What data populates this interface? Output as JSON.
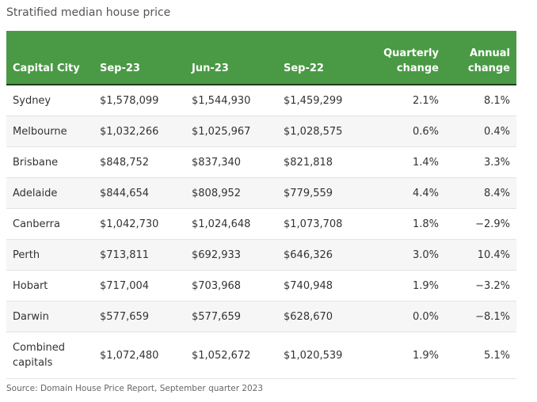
{
  "title": "Stratified median house price",
  "table": {
    "headers": {
      "city": "Capital City",
      "sep23": "Sep-23",
      "jun23": "Jun-23",
      "sep22": "Sep-22",
      "quarterly_line1": "Quarterly",
      "quarterly_line2": "change",
      "annual_line1": "Annual",
      "annual_line2": "change"
    },
    "rows": [
      {
        "city": "Sydney",
        "sep23": "$1,578,099",
        "jun23": "$1,544,930",
        "sep22": "$1,459,299",
        "quarterly": "2.1%",
        "annual": "8.1%"
      },
      {
        "city": "Melbourne",
        "sep23": "$1,032,266",
        "jun23": "$1,025,967",
        "sep22": "$1,028,575",
        "quarterly": "0.6%",
        "annual": "0.4%"
      },
      {
        "city": "Brisbane",
        "sep23": "$848,752",
        "jun23": "$837,340",
        "sep22": "$821,818",
        "quarterly": "1.4%",
        "annual": "3.3%"
      },
      {
        "city": "Adelaide",
        "sep23": "$844,654",
        "jun23": "$808,952",
        "sep22": "$779,559",
        "quarterly": "4.4%",
        "annual": "8.4%"
      },
      {
        "city": "Canberra",
        "sep23": "$1,042,730",
        "jun23": "$1,024,648",
        "sep22": "$1,073,708",
        "quarterly": "1.8%",
        "annual": "−2.9%"
      },
      {
        "city": "Perth",
        "sep23": "$713,811",
        "jun23": "$692,933",
        "sep22": "$646,326",
        "quarterly": "3.0%",
        "annual": "10.4%"
      },
      {
        "city": "Hobart",
        "sep23": "$717,004",
        "jun23": "$703,968",
        "sep22": "$740,948",
        "quarterly": "1.9%",
        "annual": "−3.2%"
      },
      {
        "city": "Darwin",
        "sep23": "$577,659",
        "jun23": "$577,659",
        "sep22": "$628,670",
        "quarterly": "0.0%",
        "annual": "−8.1%"
      },
      {
        "city": "Combined capitals",
        "sep23": "$1,072,480",
        "jun23": "$1,052,672",
        "sep22": "$1,020,539",
        "quarterly": "1.9%",
        "annual": "5.1%"
      }
    ]
  },
  "source": "Source: Domain House Price Report, September quarter 2023",
  "colors": {
    "header_bg": "#4a9a45",
    "header_text": "#ffffff",
    "row_alt_bg": "#f6f6f6"
  }
}
